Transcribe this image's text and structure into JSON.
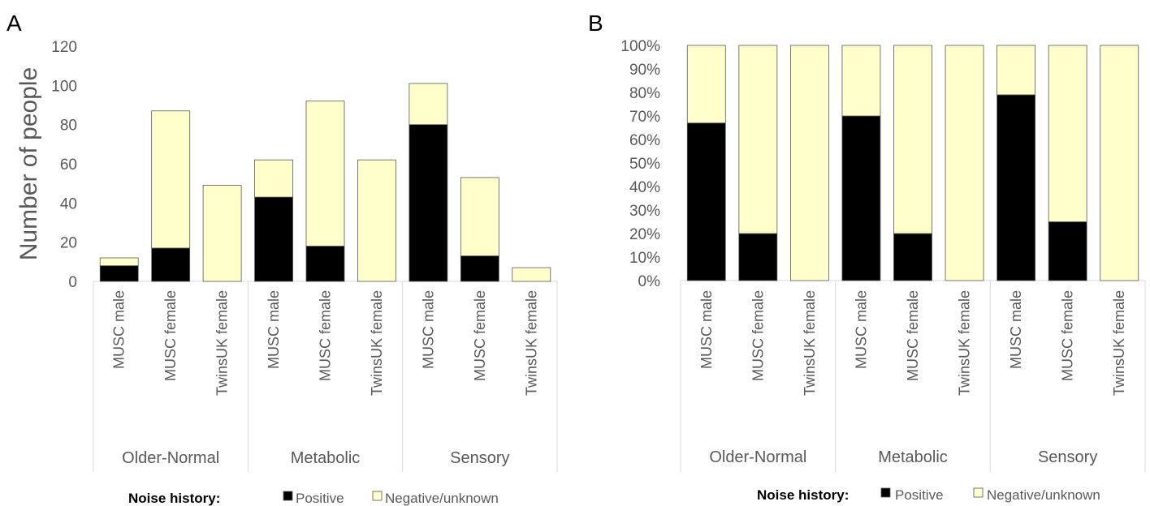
{
  "colors": {
    "positive": "#000000",
    "negative": "#FFFFCC",
    "bar_stroke": "#595959",
    "axis_text": "#595959",
    "grid_line": "#D9D9D9"
  },
  "chart_data": [
    {
      "type": "bar",
      "stacked": true,
      "panel_label": "A",
      "ylabel": "Number of people",
      "ylim": [
        0,
        120
      ],
      "yticks": [
        "0",
        "20",
        "40",
        "60",
        "80",
        "100",
        "120"
      ],
      "categories": [
        "MUSC male",
        "MUSC female",
        "TwinsUK female",
        "MUSC male",
        "MUSC female",
        "TwinsUK female",
        "MUSC male",
        "MUSC female",
        "TwinsUK female"
      ],
      "groups": [
        {
          "label": "Older-Normal",
          "span": 3
        },
        {
          "label": "Metabolic",
          "span": 3
        },
        {
          "label": "Sensory",
          "span": 3
        }
      ],
      "series": [
        {
          "name": "Positive",
          "values": [
            8,
            17,
            0,
            43,
            18,
            0,
            80,
            13,
            0
          ]
        },
        {
          "name": "Negative/unknown",
          "values": [
            4,
            70,
            49,
            19,
            74,
            62,
            21,
            40,
            7
          ]
        }
      ],
      "legend": {
        "title": "Noise history:",
        "position": "bottom"
      },
      "grid": false
    },
    {
      "type": "bar",
      "stacked": true,
      "normalized": true,
      "panel_label": "B",
      "ylabel": "",
      "ylim": [
        0,
        100
      ],
      "yticks": [
        "0%",
        "10%",
        "20%",
        "30%",
        "40%",
        "50%",
        "60%",
        "70%",
        "80%",
        "90%",
        "100%"
      ],
      "categories": [
        "MUSC male",
        "MUSC female",
        "TwinsUK female",
        "MUSC male",
        "MUSC female",
        "TwinsUK female",
        "MUSC male",
        "MUSC female",
        "TwinsUK female"
      ],
      "groups": [
        {
          "label": "Older-Normal",
          "span": 3
        },
        {
          "label": "Metabolic",
          "span": 3
        },
        {
          "label": "Sensory",
          "span": 3
        }
      ],
      "series": [
        {
          "name": "Positive",
          "values": [
            67,
            20,
            0,
            70,
            20,
            0,
            79,
            25,
            0
          ]
        },
        {
          "name": "Negative/unknown",
          "values": [
            33,
            80,
            100,
            30,
            80,
            100,
            21,
            75,
            100
          ]
        }
      ],
      "legend": {
        "title": "Noise history:",
        "position": "bottom"
      },
      "grid": false
    }
  ]
}
